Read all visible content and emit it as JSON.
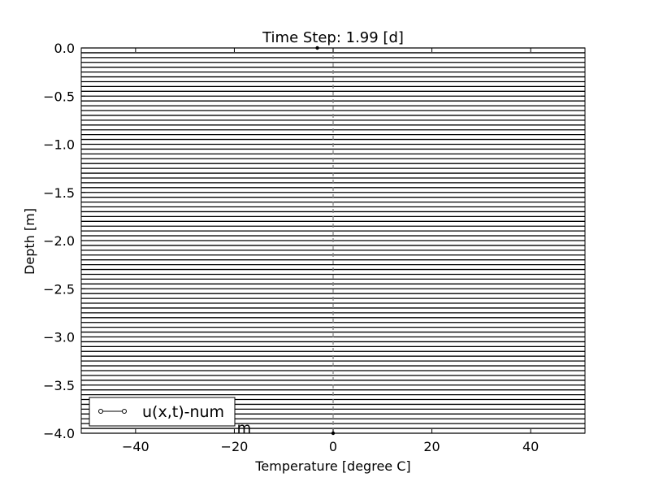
{
  "chart_data": {
    "type": "line",
    "title": "Time Step: 1.99 [d]",
    "xlabel": "Temperature [degree C]",
    "ylabel": "Depth [m]",
    "xlim": [
      -51,
      51
    ],
    "ylim": [
      -4.0,
      0.0
    ],
    "xticks": [
      -40,
      -20,
      0,
      20,
      40
    ],
    "xtick_labels": [
      "−40",
      "−20",
      "0",
      "20",
      "40"
    ],
    "yticks": [
      0.0,
      -0.5,
      -1.0,
      -1.5,
      -2.0,
      -2.5,
      -3.0,
      -3.5,
      -4.0
    ],
    "ytick_labels": [
      "0.0",
      "−0.5",
      "−1.0",
      "−1.5",
      "−2.0",
      "−2.5",
      "−3.0",
      "−3.5",
      "−4.0"
    ],
    "grid": false,
    "legend": {
      "position": "lower-left",
      "entries": [
        "u(x,t)-num"
      ]
    },
    "reference_line": {
      "x": 0,
      "style": "dashed",
      "color": "#808080"
    },
    "series": [
      {
        "name": "u(x,t)-num",
        "color": "#000000",
        "marker": "circle",
        "points": [
          [
            -3.2,
            0.0
          ],
          [
            0.0,
            -4.0
          ]
        ]
      }
    ],
    "layers": {
      "count": 80,
      "depth_top": 0.0,
      "depth_bottom": -4.0,
      "color": "#000000"
    },
    "annotation": {
      "visible_text": "m",
      "x": -21,
      "y": -3.92
    }
  }
}
